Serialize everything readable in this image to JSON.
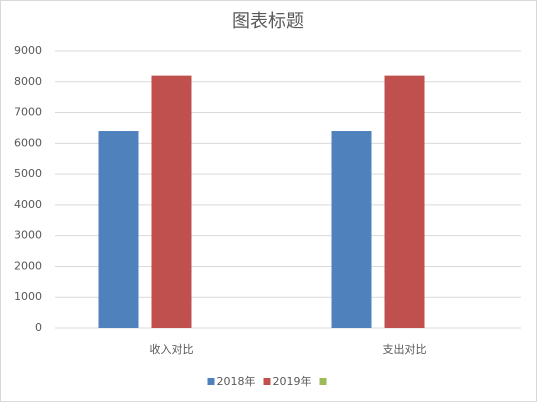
{
  "chart_data": {
    "type": "bar",
    "title": "图表标题",
    "categories": [
      "收入对比",
      "支出对比"
    ],
    "series": [
      {
        "name": "2018年",
        "color": "#4f81bd",
        "values": [
          6400,
          6400
        ]
      },
      {
        "name": "2019年",
        "color": "#c0504d",
        "values": [
          8200,
          8200
        ]
      },
      {
        "color": "#9bbb59",
        "values": [
          null,
          null
        ]
      }
    ],
    "ylim": [
      0,
      9000
    ],
    "yticks": [
      0,
      1000,
      2000,
      3000,
      4000,
      5000,
      6000,
      7000,
      8000,
      9000
    ],
    "grid": true,
    "legend": "bottom"
  }
}
